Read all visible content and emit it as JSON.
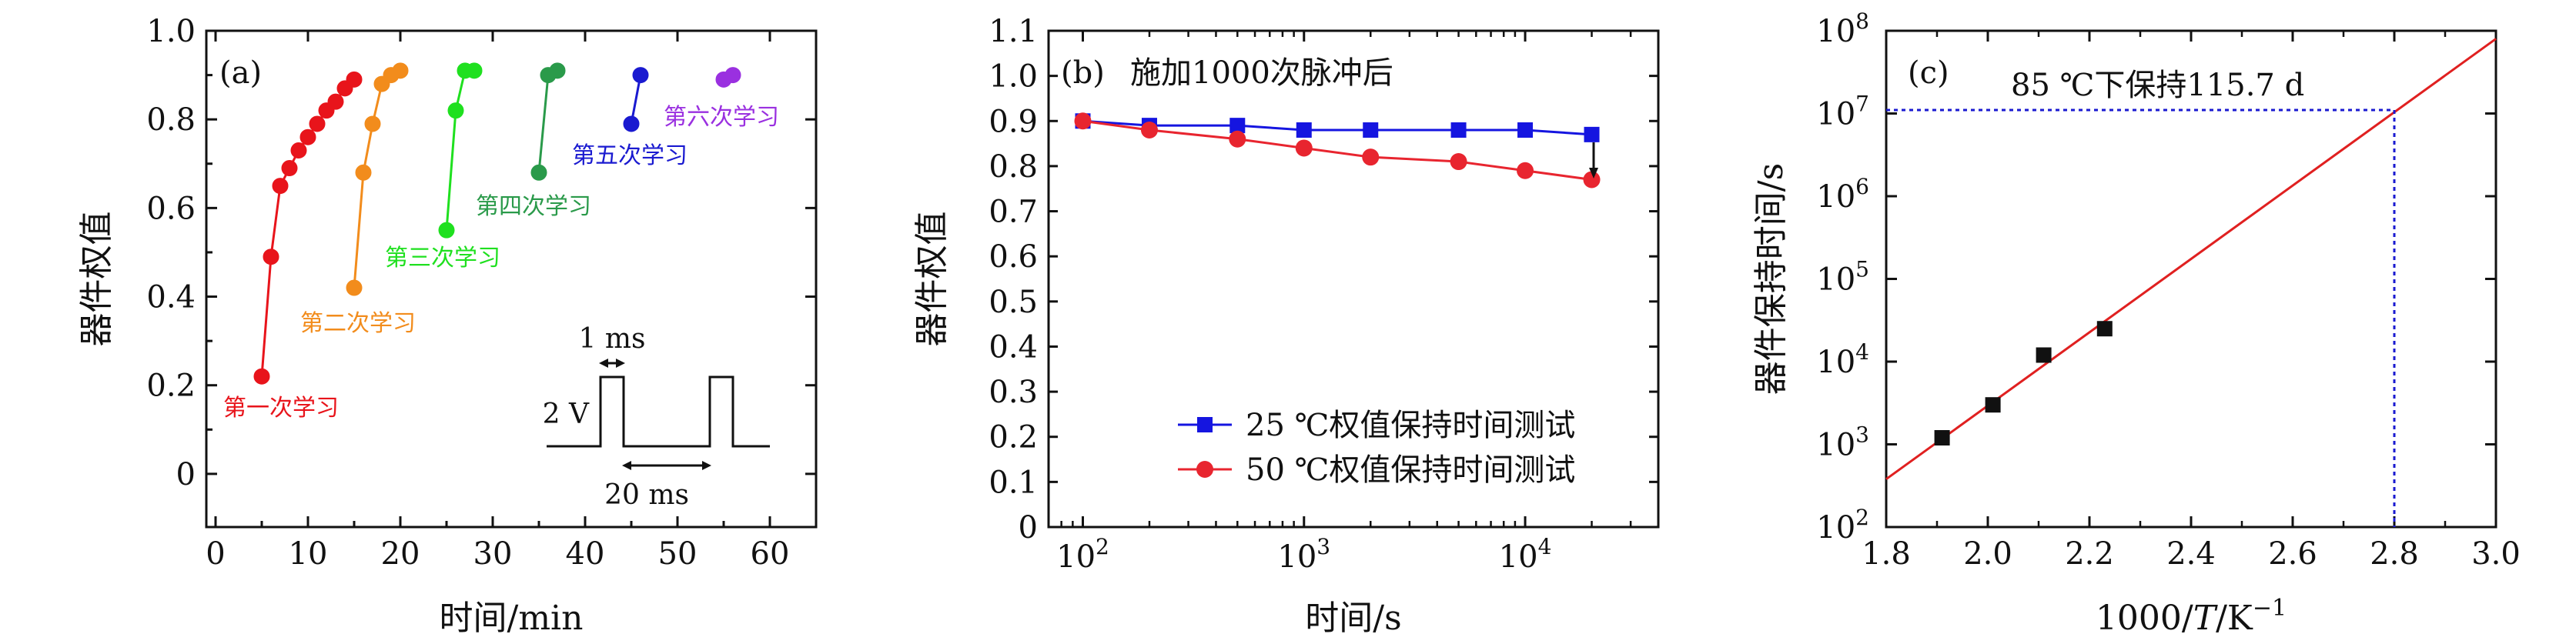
{
  "chart_data": [
    {
      "type": "scatter",
      "panel_label": "(a)",
      "xlabel": "时间/min",
      "ylabel": "器件权值",
      "xlim": [
        -1,
        65
      ],
      "ylim": [
        -0.12,
        1.0
      ],
      "xticks": [
        "0",
        "10",
        "20",
        "30",
        "40",
        "50",
        "60"
      ],
      "yticks": [
        "0",
        "0.2",
        "0.4",
        "0.6",
        "0.8",
        "1.0"
      ],
      "series": [
        {
          "name": "第一次学习",
          "color": "#e8141b",
          "x": [
            5,
            6,
            7,
            8,
            9,
            10,
            11,
            12,
            13,
            14,
            15
          ],
          "y": [
            0.22,
            0.49,
            0.65,
            0.69,
            0.73,
            0.76,
            0.79,
            0.82,
            0.84,
            0.87,
            0.89
          ]
        },
        {
          "name": "第二次学习",
          "color": "#f28c1c",
          "x": [
            15,
            16,
            17,
            18,
            19,
            20
          ],
          "y": [
            0.42,
            0.68,
            0.79,
            0.88,
            0.9,
            0.91
          ]
        },
        {
          "name": "第三次学习",
          "color": "#1fe01f",
          "x": [
            25,
            26,
            27,
            28
          ],
          "y": [
            0.55,
            0.82,
            0.91,
            0.91
          ]
        },
        {
          "name": "第四次学习",
          "color": "#2a9a4a",
          "x": [
            35,
            36,
            37
          ],
          "y": [
            0.68,
            0.9,
            0.91
          ]
        },
        {
          "name": "第五次学习",
          "color": "#1a1ad0",
          "x": [
            45,
            46
          ],
          "y": [
            0.79,
            0.9
          ]
        },
        {
          "name": "第六次学习",
          "color": "#9a30e0",
          "x": [
            55,
            56
          ],
          "y": [
            0.89,
            0.9
          ]
        }
      ],
      "inset": {
        "top_label": "1 ms",
        "left_label": "2 V",
        "bottom_label": "20 ms"
      }
    },
    {
      "type": "line",
      "panel_label": "(b)",
      "title": "施加1000次脉冲后",
      "xlabel": "时间/s",
      "ylabel": "器件权值",
      "x_scale": "log",
      "xlim": [
        70,
        40000
      ],
      "ylim": [
        0,
        1.1
      ],
      "xticks": [
        "10",
        "10",
        "10"
      ],
      "xtick_exponents": [
        "2",
        "3",
        "4"
      ],
      "yticks": [
        "0",
        "0.1",
        "0.2",
        "0.3",
        "0.4",
        "0.5",
        "0.6",
        "0.7",
        "0.8",
        "0.9",
        "1.0",
        "1.1"
      ],
      "legend_position": "bottom-right",
      "series": [
        {
          "name": "25 ℃权值保持时间测试",
          "color": "#1515e0",
          "marker": "square",
          "x": [
            100,
            200,
            500,
            1000,
            2000,
            5000,
            10000,
            20000
          ],
          "y": [
            0.9,
            0.89,
            0.89,
            0.88,
            0.88,
            0.88,
            0.88,
            0.87
          ]
        },
        {
          "name": "50 ℃权值保持时间测试",
          "color": "#e8252f",
          "marker": "circle",
          "x": [
            100,
            200,
            500,
            1000,
            2000,
            5000,
            10000,
            20000
          ],
          "y": [
            0.9,
            0.88,
            0.86,
            0.84,
            0.82,
            0.81,
            0.79,
            0.77
          ]
        }
      ]
    },
    {
      "type": "scatter",
      "panel_label": "(c)",
      "annotation": "85 ℃下保持115.7 d",
      "xlabel_parts": [
        "1000/",
        "T",
        "/K",
        "−1"
      ],
      "ylabel": "器件保持时间/s",
      "y_scale": "log",
      "xlim": [
        1.8,
        3.0
      ],
      "ylim": [
        100,
        100000000
      ],
      "xticks": [
        "1.8",
        "2.0",
        "2.2",
        "2.4",
        "2.6",
        "2.8",
        "3.0"
      ],
      "yticks": [
        "10",
        "10",
        "10",
        "10",
        "10",
        "10",
        "10"
      ],
      "ytick_exponents": [
        "2",
        "3",
        "4",
        "5",
        "6",
        "7",
        "8"
      ],
      "points": {
        "color": "#111111",
        "marker": "square",
        "x": [
          1.91,
          2.01,
          2.11,
          2.23
        ],
        "y": [
          1200,
          3000,
          12000,
          25000
        ]
      },
      "fit_line": {
        "color": "#e02020",
        "x": [
          1.8,
          3.0
        ],
        "y": [
          380,
          80000000
        ]
      },
      "guide": {
        "color": "#1a1ad0",
        "x": 2.8,
        "y": 11000000
      }
    }
  ]
}
